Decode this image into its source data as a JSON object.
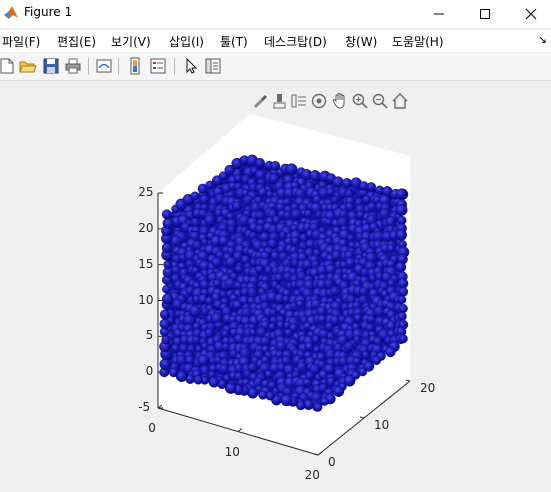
{
  "window": {
    "title": "Figure 1",
    "controls": [
      "minimize",
      "maximize",
      "close"
    ]
  },
  "menu": {
    "items": [
      "파일(F)",
      "편집(E)",
      "보기(V)",
      "삽입(I)",
      "툴(T)",
      "데스크탑(D)",
      "창(W)",
      "도움말(H)"
    ],
    "overflow": "↘"
  },
  "toolbar": {
    "icons": [
      "new-figure-icon",
      "open-file-icon",
      "save-icon",
      "print-icon",
      "link-plot-icon",
      "insert-colorbar-icon",
      "insert-legend-icon",
      "edit-plot-icon",
      "property-inspector-icon"
    ]
  },
  "axes_toolbar": {
    "icons": [
      "brush-icon",
      "data-tips-icon",
      "rotate-3d-icon",
      "pan-icon",
      "zoom-in-icon",
      "zoom-out-icon",
      "restore-view-icon"
    ]
  },
  "chart_data": {
    "type": "scatter3d",
    "title": "",
    "xlabel": "",
    "ylabel": "",
    "zlabel": "",
    "xlim": [
      0,
      20
    ],
    "ylim": [
      0,
      20
    ],
    "zlim": [
      -5,
      25
    ],
    "xticks": [
      "0",
      "10",
      "20"
    ],
    "yticks": [
      "0",
      "10",
      "20"
    ],
    "zticks": [
      "-5",
      "0",
      "5",
      "10",
      "15",
      "20",
      "25"
    ],
    "marker_color": "#1a1ab8",
    "description_shape": "cube-of-spheres"
  }
}
